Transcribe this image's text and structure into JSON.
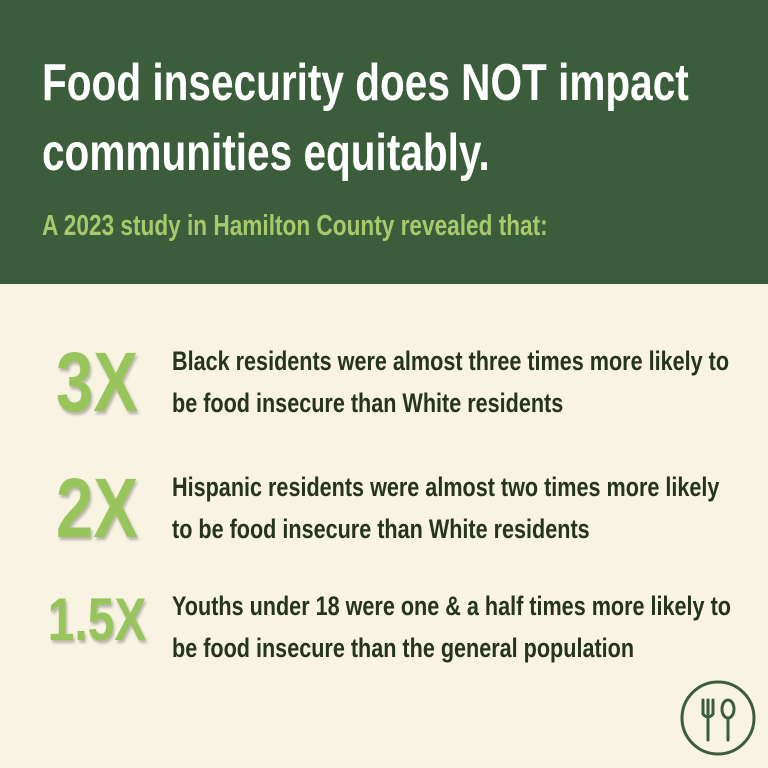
{
  "header": {
    "title": "Food insecurity does NOT impact communities equitably.",
    "subtitle": "A 2023 study in Hamilton County revealed that:"
  },
  "stats": [
    {
      "figure": "3X",
      "text": "Black residents were almost three times more likely to be food insecure than White residents"
    },
    {
      "figure": "2X",
      "text": "Hispanic residents were almost two times more likely to be food insecure than White residents"
    },
    {
      "figure": "1.5X",
      "text": "Youths under 18 were one & a half times more likely to be food insecure than the general population"
    }
  ]
}
